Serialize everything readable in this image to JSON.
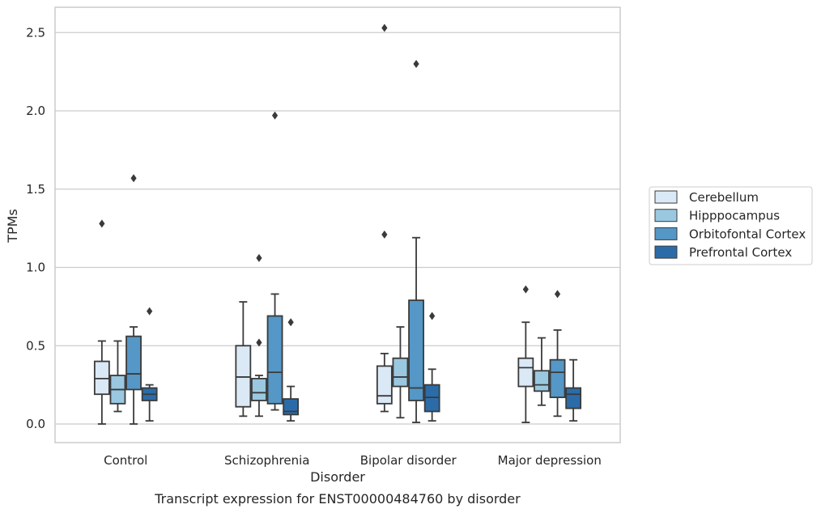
{
  "chart_data": {
    "type": "box",
    "title": "",
    "caption": "Transcript expression for ENST00000484760 by disorder",
    "xlabel": "Disorder",
    "ylabel": "TPMs",
    "ylim": [
      -0.12,
      2.66
    ],
    "yticks": [
      "0.0",
      "0.5",
      "1.0",
      "1.5",
      "2.0",
      "2.5"
    ],
    "grid": "horizontal",
    "legend_position": "right",
    "categories": [
      "Control",
      "Schizophrenia",
      "Bipolar disorder",
      "Major depression"
    ],
    "series": [
      {
        "name": "Cerebellum",
        "color": "#dbe9f6",
        "boxes": [
          {
            "whislo": 0.0,
            "q1": 0.19,
            "med": 0.29,
            "q3": 0.4,
            "whishi": 0.53,
            "fliers": [
              1.28
            ]
          },
          {
            "whislo": 0.05,
            "q1": 0.11,
            "med": 0.3,
            "q3": 0.5,
            "whishi": 0.78,
            "fliers": []
          },
          {
            "whislo": 0.08,
            "q1": 0.13,
            "med": 0.18,
            "q3": 0.37,
            "whishi": 0.45,
            "fliers": [
              1.21,
              2.53
            ]
          },
          {
            "whislo": 0.01,
            "q1": 0.24,
            "med": 0.36,
            "q3": 0.42,
            "whishi": 0.65,
            "fliers": [
              0.86
            ]
          }
        ]
      },
      {
        "name": "Hipppocampus",
        "color": "#9ac8e0",
        "boxes": [
          {
            "whislo": 0.08,
            "q1": 0.13,
            "med": 0.22,
            "q3": 0.31,
            "whishi": 0.53,
            "fliers": []
          },
          {
            "whislo": 0.05,
            "q1": 0.15,
            "med": 0.2,
            "q3": 0.29,
            "whishi": 0.31,
            "fliers": [
              0.52,
              1.06
            ]
          },
          {
            "whislo": 0.04,
            "q1": 0.24,
            "med": 0.3,
            "q3": 0.42,
            "whishi": 0.62,
            "fliers": []
          },
          {
            "whislo": 0.12,
            "q1": 0.21,
            "med": 0.25,
            "q3": 0.34,
            "whishi": 0.55,
            "fliers": []
          }
        ]
      },
      {
        "name": "Orbitofontal Cortex",
        "color": "#5597c6",
        "boxes": [
          {
            "whislo": 0.0,
            "q1": 0.22,
            "med": 0.32,
            "q3": 0.56,
            "whishi": 0.62,
            "fliers": [
              1.57
            ]
          },
          {
            "whislo": 0.09,
            "q1": 0.13,
            "med": 0.33,
            "q3": 0.69,
            "whishi": 0.83,
            "fliers": [
              1.97
            ]
          },
          {
            "whislo": 0.01,
            "q1": 0.15,
            "med": 0.23,
            "q3": 0.79,
            "whishi": 1.19,
            "fliers": [
              2.3
            ]
          },
          {
            "whislo": 0.05,
            "q1": 0.17,
            "med": 0.33,
            "q3": 0.41,
            "whishi": 0.6,
            "fliers": [
              0.83
            ]
          }
        ]
      },
      {
        "name": "Prefrontal Cortex",
        "color": "#2b6ca8",
        "boxes": [
          {
            "whislo": 0.02,
            "q1": 0.15,
            "med": 0.19,
            "q3": 0.23,
            "whishi": 0.25,
            "fliers": [
              0.72
            ]
          },
          {
            "whislo": 0.02,
            "q1": 0.06,
            "med": 0.08,
            "q3": 0.16,
            "whishi": 0.24,
            "fliers": [
              0.65
            ]
          },
          {
            "whislo": 0.02,
            "q1": 0.08,
            "med": 0.17,
            "q3": 0.25,
            "whishi": 0.35,
            "fliers": [
              0.69
            ]
          },
          {
            "whislo": 0.02,
            "q1": 0.1,
            "med": 0.19,
            "q3": 0.23,
            "whishi": 0.41,
            "fliers": []
          }
        ]
      }
    ]
  }
}
